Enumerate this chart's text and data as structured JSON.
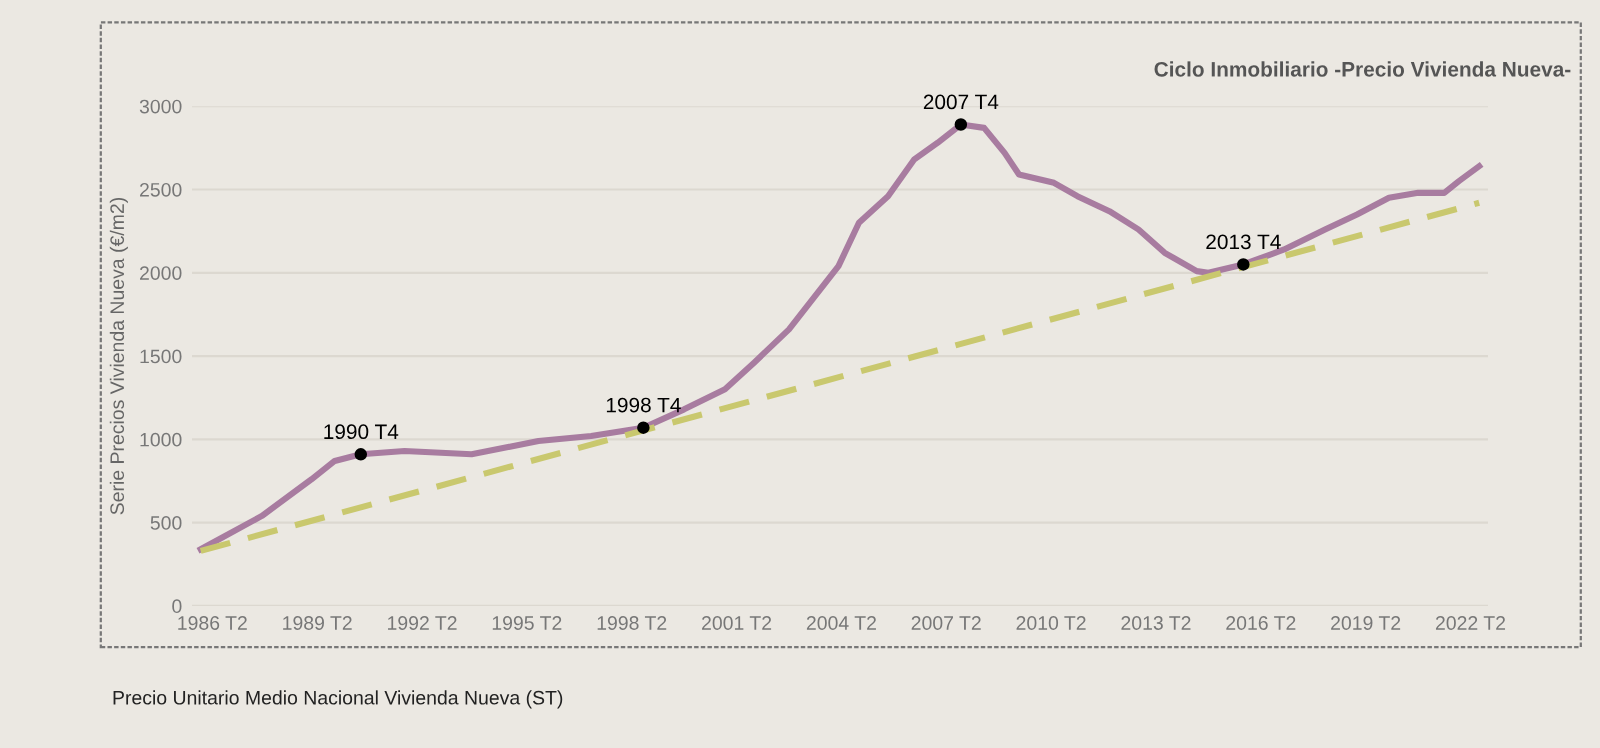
{
  "chart_data": {
    "type": "line",
    "title": "Ciclo Inmobiliario -Precio Vivienda Nueva-",
    "ylabel": "Serie Precios Vivienda Nueva (€/m2)",
    "annotations": [
      {
        "text": "1990 T4",
        "x": "1990-07",
        "y": 910
      },
      {
        "text": "1998 T4",
        "x": "1998-08",
        "y": 1070
      },
      {
        "text": "2007 T4",
        "x": "2007-09",
        "y": 2890
      },
      {
        "text": "2013 T4",
        "x": "2015-10",
        "y": 2050
      },
      "Precio Unitario Medio Nacional Vivienda Nueva (ST)"
    ],
    "series": [
      {
        "color": "#a87ca0",
        "line_style": "solid",
        "x": [
          "1985-12",
          "1987-09",
          "1989-02",
          "1989-10",
          "1990-07",
          "1991-10",
          "1993-09",
          "1995-08",
          "1997-02",
          "1998-08",
          "1999-10",
          "2000-12",
          "2001-10",
          "2002-10",
          "2004-03",
          "2004-10",
          "2005-08",
          "2006-05",
          "2007-01",
          "2007-09",
          "2008-05",
          "2008-12",
          "2009-05",
          "2010-05",
          "2011-01",
          "2011-12",
          "2012-10",
          "2013-07",
          "2014-06",
          "2014-10",
          "2015-10",
          "2016-12",
          "2018-02",
          "2019-01",
          "2019-12",
          "2020-10",
          "2021-07",
          "2021-12",
          "2022-07"
        ],
        "values": [
          340,
          540,
          760,
          870,
          910,
          930,
          910,
          990,
          1020,
          1070,
          1180,
          1300,
          1460,
          1660,
          2040,
          2300,
          2460,
          2680,
          2780,
          2890,
          2870,
          2720,
          2590,
          2540,
          2460,
          2370,
          2260,
          2120,
          2010,
          2000,
          2050,
          2140,
          2260,
          2350,
          2450,
          2480,
          2480,
          2550,
          2640
        ]
      },
      {
        "color": "#c9c86e",
        "line_style": "dashed",
        "x": [
          "1985-12",
          "2022-07"
        ],
        "values": [
          330,
          2420
        ]
      }
    ],
    "xlim": [
      "1985-09",
      "2022-10"
    ],
    "ylim": [
      0,
      3000
    ],
    "xticks": [
      {
        "value": "1986-04",
        "label": "1986 T2"
      },
      {
        "value": "1989-04",
        "label": "1989 T2"
      },
      {
        "value": "1992-04",
        "label": "1992 T2"
      },
      {
        "value": "1995-04",
        "label": "1995 T2"
      },
      {
        "value": "1998-04",
        "label": "1998 T2"
      },
      {
        "value": "2001-04",
        "label": "2001 T2"
      },
      {
        "value": "2004-04",
        "label": "2004 T2"
      },
      {
        "value": "2007-04",
        "label": "2007 T2"
      },
      {
        "value": "2010-04",
        "label": "2010 T2"
      },
      {
        "value": "2013-04",
        "label": "2013 T2"
      },
      {
        "value": "2016-04",
        "label": "2016 T2"
      },
      {
        "value": "2019-04",
        "label": "2019 T2"
      },
      {
        "value": "2022-04",
        "label": "2022 T2"
      }
    ],
    "yticks": [
      0,
      500,
      1000,
      1500,
      2000,
      2500,
      3000
    ],
    "grid": "y",
    "legend": false,
    "marker": "none"
  }
}
